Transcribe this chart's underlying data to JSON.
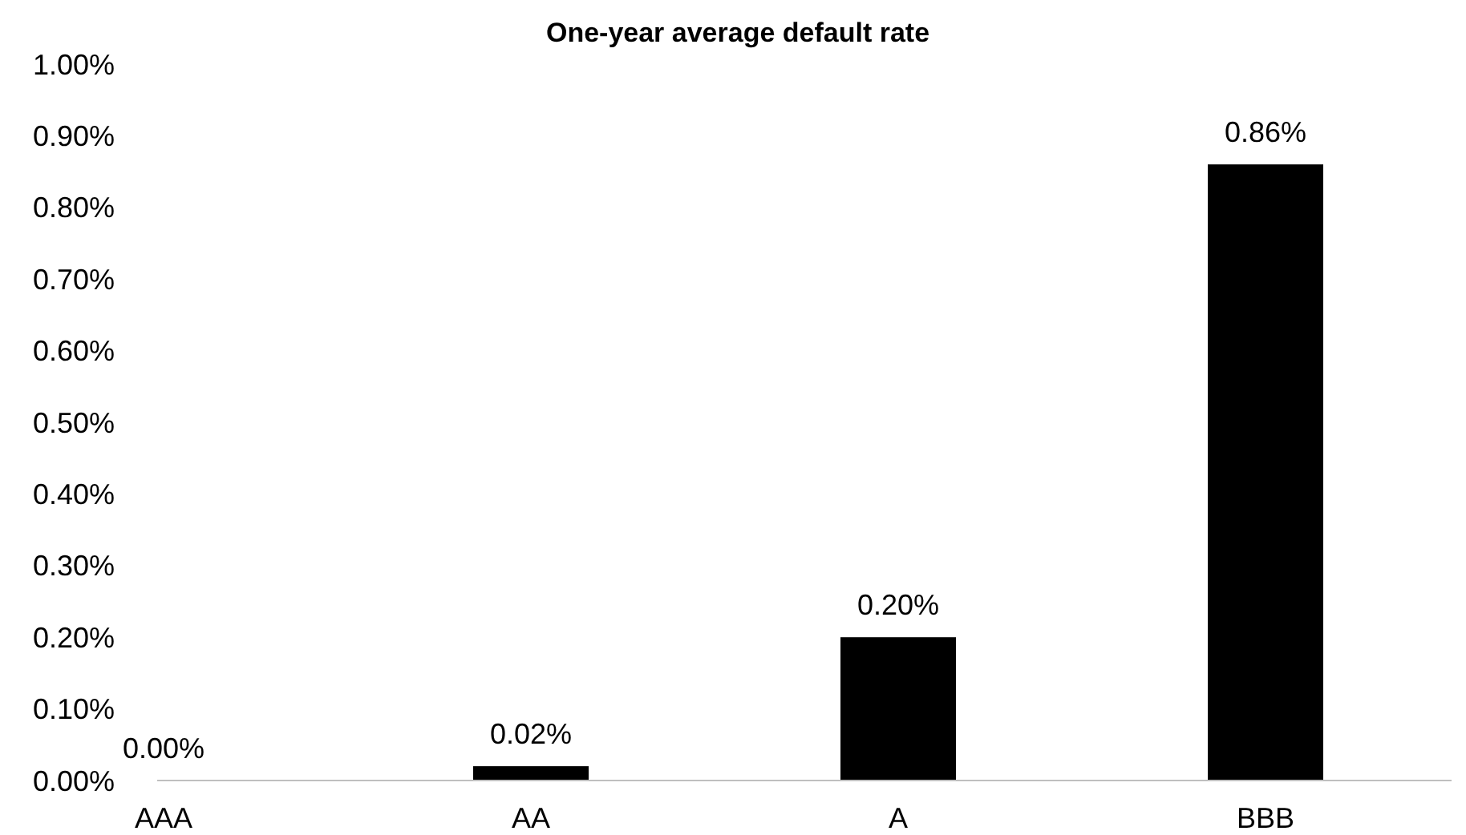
{
  "chart_data": {
    "type": "bar",
    "title": "One-year average default rate",
    "categories": [
      "AAA",
      "AA",
      "A",
      "BBB"
    ],
    "values": [
      0,
      0.02,
      0.2,
      0.86
    ],
    "value_labels": [
      "0.00%",
      "0.02%",
      "0.20%",
      "0.86%"
    ],
    "color": "#000000",
    "ylim": [
      0,
      1
    ],
    "yticks": [
      {
        "value": 0,
        "label": "0.00%"
      },
      {
        "value": 0.1,
        "label": "0.10%"
      },
      {
        "value": 0.2,
        "label": "0.20%"
      },
      {
        "value": 0.3,
        "label": "0.30%"
      },
      {
        "value": 0.4,
        "label": "0.40%"
      },
      {
        "value": 0.5,
        "label": "0.50%"
      },
      {
        "value": 0.6,
        "label": "0.60%"
      },
      {
        "value": 0.7,
        "label": "0.70%"
      },
      {
        "value": 0.8,
        "label": "0.80%"
      },
      {
        "value": 0.9,
        "label": "0.90%"
      },
      {
        "value": 1,
        "label": "1.00%"
      }
    ],
    "grid": false
  }
}
